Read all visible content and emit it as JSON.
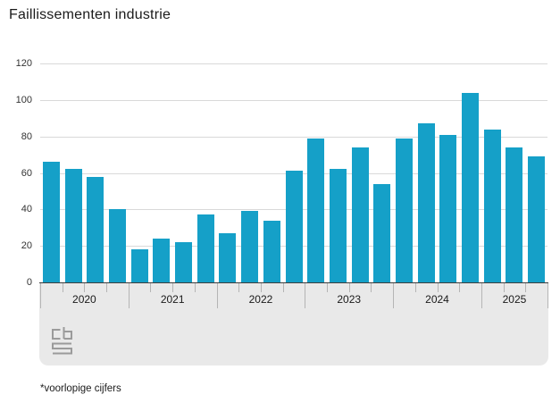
{
  "title": "Faillissementen industrie",
  "footnote": "*voorlopige cijfers",
  "colors": {
    "bar": "#15a0c8",
    "gridline": "#d9d9d9",
    "axis_line": "#3d3d3d",
    "band_bg": "#e9e9e9",
    "tick": "#b5b5b5",
    "logo": "#9b9b9b",
    "text": "#1a1a1a"
  },
  "chart_data": {
    "type": "bar",
    "title": "Faillissementen industrie",
    "x": [
      "2020 Q1",
      "2020 Q2",
      "2020 Q3",
      "2020 Q4",
      "2021 Q1",
      "2021 Q2",
      "2021 Q3",
      "2021 Q4",
      "2022 Q1",
      "2022 Q2",
      "2022 Q3",
      "2022 Q4",
      "2023 Q1",
      "2023 Q2",
      "2023 Q3",
      "2023 Q4",
      "2024 Q1",
      "2024 Q2",
      "2024 Q3",
      "2024 Q4",
      "2025 Q1",
      "2025 Q2",
      "2025 Q3"
    ],
    "values": [
      66,
      62,
      58,
      40,
      18,
      24,
      22,
      37,
      27,
      39,
      34,
      61,
      79,
      62,
      74,
      54,
      79,
      87,
      81,
      104,
      84,
      74,
      69
    ],
    "groups": [
      {
        "label": "2020",
        "quarters": 4
      },
      {
        "label": "2021",
        "quarters": 4
      },
      {
        "label": "2022",
        "quarters": 4
      },
      {
        "label": "2023",
        "quarters": 4
      },
      {
        "label": "2024",
        "quarters": 4
      },
      {
        "label": "2025",
        "quarters": 3
      }
    ],
    "xlabel": "",
    "ylabel": "",
    "ylim": [
      0,
      120
    ],
    "yticks": [
      0,
      20,
      40,
      60,
      80,
      100,
      120
    ],
    "grid": true,
    "legend": false,
    "footnote": "*voorlopige cijfers"
  }
}
